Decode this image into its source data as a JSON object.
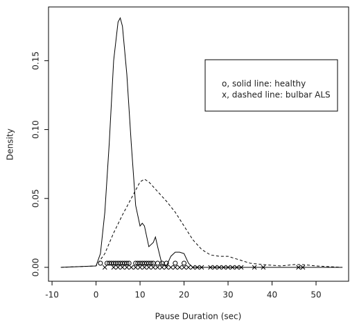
{
  "chart_data": {
    "type": "line",
    "x_label": "Pause Duration (sec)",
    "y_label": "Density",
    "xlim": [
      -10.8,
      57.4
    ],
    "ylim": [
      -0.0101,
      0.189
    ],
    "xticks": [
      -10,
      0,
      10,
      20,
      30,
      40,
      50
    ],
    "yticks": [
      {
        "value": 0,
        "label": "0.00"
      },
      {
        "value": 0.05,
        "label": "0.05"
      },
      {
        "value": 0.1,
        "label": "0.10"
      },
      {
        "value": 0.15,
        "label": "0.15"
      }
    ],
    "color": "#000000",
    "series": [
      {
        "name": "o, solid line: healthy",
        "dash": false,
        "marker": "o",
        "x": [
          -8,
          0,
          1,
          2,
          3,
          4,
          5,
          5.5,
          6,
          7,
          8,
          9,
          10,
          10.5,
          11,
          12,
          13,
          13.5,
          14,
          15,
          16,
          17,
          18,
          19,
          20,
          21,
          22,
          56
        ],
        "values": [
          0,
          0.001,
          0.01,
          0.04,
          0.09,
          0.15,
          0.178,
          0.181,
          0.175,
          0.14,
          0.09,
          0.045,
          0.03,
          0.032,
          0.03,
          0.015,
          0.018,
          0.022,
          0.015,
          0.002,
          0.001,
          0.008,
          0.011,
          0.011,
          0.01,
          0.003,
          0,
          0
        ],
        "points": {
          "x": [
            1,
            2.5,
            3,
            3.5,
            4,
            4.5,
            5,
            5.5,
            6,
            6.5,
            7,
            7.5,
            9,
            9.5,
            10,
            10.5,
            11,
            11.5,
            12,
            12.5,
            13,
            14,
            15,
            16,
            18,
            20
          ],
          "values": [
            0.003,
            0.003,
            0.003,
            0.003,
            0.003,
            0.003,
            0.003,
            0.003,
            0.003,
            0.003,
            0.003,
            0.003,
            0.003,
            0.003,
            0.003,
            0.003,
            0.003,
            0.003,
            0.003,
            0.003,
            0.003,
            0.003,
            0.003,
            0.003,
            0.003,
            0.003
          ]
        }
      },
      {
        "name": "x, dashed line: bulbar ALS",
        "dash": true,
        "marker": "x",
        "x": [
          -8,
          0,
          2,
          4,
          6,
          8,
          10,
          11,
          12,
          14,
          16,
          18,
          20,
          22,
          24,
          26,
          28,
          30,
          32,
          35,
          38,
          42,
          45,
          47,
          50,
          56
        ],
        "values": [
          0,
          0.001,
          0.01,
          0.025,
          0.038,
          0.05,
          0.062,
          0.064,
          0.062,
          0.055,
          0.048,
          0.04,
          0.03,
          0.02,
          0.013,
          0.009,
          0.008,
          0.008,
          0.006,
          0.003,
          0.002,
          0.001,
          0.002,
          0.002,
          0.001,
          0
        ],
        "points": {
          "x": [
            2,
            4,
            5,
            6,
            7,
            8,
            9,
            10,
            11,
            12,
            13,
            14,
            15,
            16,
            17,
            18,
            19,
            20,
            21,
            22,
            23,
            24,
            26,
            27,
            28,
            29,
            30,
            31,
            32,
            33,
            36,
            38,
            46,
            47
          ],
          "values": [
            0,
            0,
            0,
            0,
            0,
            0,
            0,
            0,
            0,
            0,
            0,
            0,
            0,
            0,
            0,
            0,
            0,
            0,
            0,
            0,
            0,
            0,
            0,
            0,
            0,
            0,
            0,
            0,
            0,
            0,
            0,
            0,
            0,
            0
          ]
        }
      }
    ]
  }
}
